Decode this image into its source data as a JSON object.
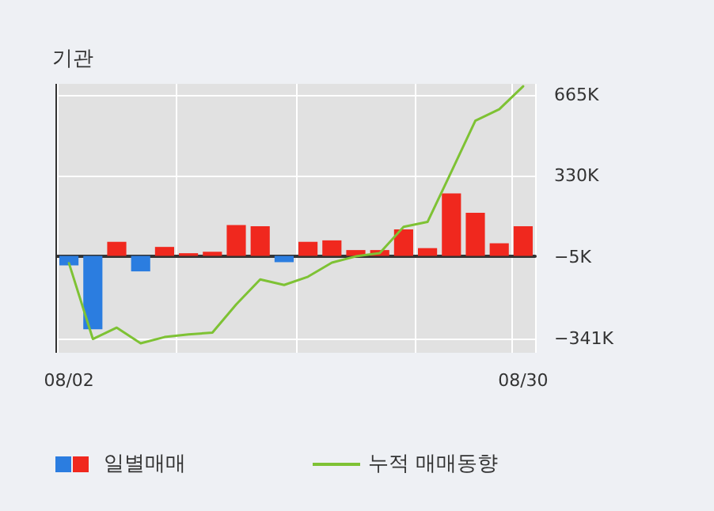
{
  "chart_data": {
    "type": "bar",
    "title": "기관",
    "categories": [
      "08/02",
      null,
      null,
      null,
      null,
      null,
      null,
      null,
      null,
      null,
      null,
      null,
      null,
      null,
      null,
      null,
      null,
      null,
      null,
      "08/30"
    ],
    "series": [
      {
        "name": "일별매매",
        "colors": [
          "#2b7de0",
          "#2b7de0",
          "#f0281e",
          "#2b7de0",
          "#f0281e",
          "#f0281e",
          "#f0281e",
          "#f0281e",
          "#f0281e",
          "#2b7de0",
          "#f0281e",
          "#f0281e",
          "#f0281e",
          "#f0281e",
          "#f0281e",
          "#f0281e",
          "#f0281e",
          "#f0281e",
          "#f0281e",
          "#f0281e"
        ],
        "values": [
          -39,
          -303,
          58,
          -64,
          37,
          11,
          17,
          127,
          122,
          -26,
          58,
          64,
          24,
          24,
          109,
          32,
          258,
          178,
          52,
          122
        ]
      },
      {
        "name": "누적 매매동향",
        "type": "line",
        "color": "#7ec234",
        "values": [
          -30,
          -343,
          -296,
          -361,
          -335,
          -324,
          -317,
          -200,
          -97,
          -120,
          -86,
          -28,
          -2,
          11,
          120,
          140,
          348,
          558,
          605,
          700
        ]
      }
    ],
    "ylim": [
      -400,
      710
    ],
    "yticks": [
      {
        "value": -341,
        "label": "−341K"
      },
      {
        "value": -5,
        "label": "−5K"
      },
      {
        "value": 330,
        "label": "330K"
      },
      {
        "value": 665,
        "label": "665K"
      }
    ],
    "grid": true,
    "legend": "bottom",
    "marker": "none",
    "line_style": "solid"
  }
}
